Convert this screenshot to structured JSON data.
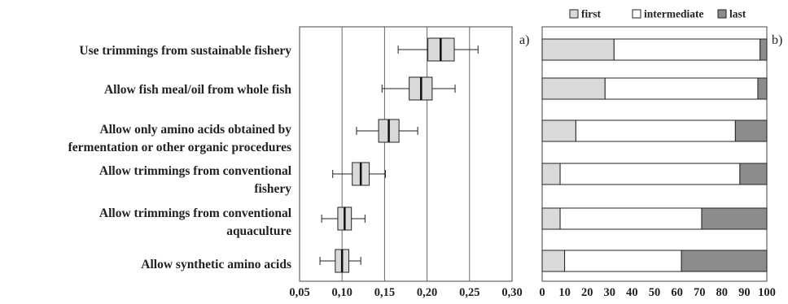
{
  "chart_data": [
    {
      "type": "box",
      "panel_label": "a)",
      "categories": [
        "Use trimmings from sustainable fishery",
        "Allow fish meal/oil from whole fish",
        "Allow only amino acids obtained by fermentation or other organic procedures",
        "Allow trimmings from conventional fishery",
        "Allow trimmings from conventional aquaculture",
        "Allow synthetic amino acids"
      ],
      "category_lines": [
        [
          "Use trimmings from sustainable fishery"
        ],
        [
          "Allow fish meal/oil from whole fish"
        ],
        [
          "Allow only amino acids obtained by",
          "fermentation or other organic procedures"
        ],
        [
          "Allow trimmings from conventional",
          "fishery"
        ],
        [
          "Allow trimmings from conventional",
          "aquaculture"
        ],
        [
          "Allow synthetic amino acids"
        ]
      ],
      "boxes": [
        {
          "whisker_low": 0.166,
          "q1": 0.201,
          "median": 0.216,
          "q3": 0.232,
          "whisker_high": 0.26
        },
        {
          "whisker_low": 0.147,
          "q1": 0.179,
          "median": 0.193,
          "q3": 0.206,
          "whisker_high": 0.233
        },
        {
          "whisker_low": 0.117,
          "q1": 0.143,
          "median": 0.155,
          "q3": 0.167,
          "whisker_high": 0.189
        },
        {
          "whisker_low": 0.089,
          "q1": 0.112,
          "median": 0.122,
          "q3": 0.132,
          "whisker_high": 0.151
        },
        {
          "whisker_low": 0.076,
          "q1": 0.095,
          "median": 0.103,
          "q3": 0.111,
          "whisker_high": 0.127
        },
        {
          "whisker_low": 0.074,
          "q1": 0.092,
          "median": 0.1,
          "q3": 0.108,
          "whisker_high": 0.122
        }
      ],
      "xlim": [
        0.05,
        0.3
      ],
      "xticks": [
        "0,05",
        "0,10",
        "0,15",
        "0,20",
        "0,25",
        "0,30"
      ],
      "grid": "vertical",
      "box_color": "#d9d9d9"
    },
    {
      "type": "bar",
      "stacked": true,
      "orientation": "horizontal",
      "panel_label": "b)",
      "series": [
        {
          "name": "first",
          "color": "#d9d9d9",
          "values": [
            32,
            28,
            15,
            8,
            8,
            10
          ]
        },
        {
          "name": "intermediate",
          "color": "#ffffff",
          "values": [
            65,
            68,
            71,
            80,
            63,
            52
          ]
        },
        {
          "name": "last",
          "color": "#8c8c8c",
          "values": [
            3,
            4,
            14,
            12,
            29,
            38
          ]
        }
      ],
      "xlim": [
        0,
        100
      ],
      "xticks": [
        "0",
        "10",
        "20",
        "30",
        "40",
        "50",
        "60",
        "70",
        "80",
        "90",
        "100"
      ],
      "legend": "top"
    }
  ]
}
